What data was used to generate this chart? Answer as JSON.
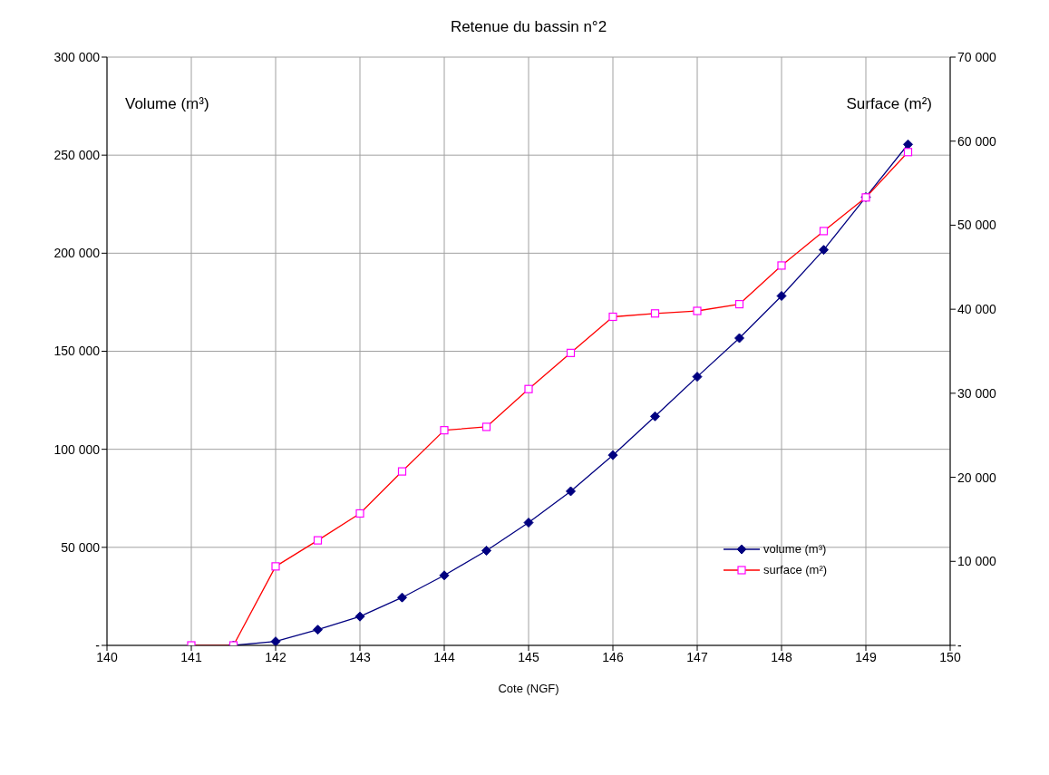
{
  "chart_data": {
    "type": "line",
    "title": "Retenue du bassin n°2",
    "xlabel": "Cote (NGF)",
    "ylabel": "Volume (m³)",
    "y2label": "Surface (m²)",
    "x": [
      141,
      141.5,
      142,
      142.5,
      143,
      143.5,
      144,
      144.5,
      145,
      145.5,
      146,
      146.5,
      147,
      147.5,
      148,
      148.5,
      149,
      149.5
    ],
    "series": [
      {
        "name": "volume (m³)",
        "color": "#000080",
        "marker": "diamond",
        "values": [
          null,
          0,
          2000,
          8000,
          14700,
          24400,
          35700,
          48300,
          62600,
          78600,
          97000,
          116800,
          137000,
          156700,
          178200,
          201700,
          228600,
          255500
        ]
      },
      {
        "name": "surface (m²)",
        "color": "#ff0000",
        "marker": "square",
        "axis": "y2",
        "values": [
          0,
          0,
          9400,
          12500,
          15700,
          20700,
          25600,
          26000,
          30500,
          34800,
          39100,
          39500,
          39800,
          40600,
          45200,
          49300,
          53300,
          58700
        ]
      }
    ],
    "xlim": [
      140,
      150
    ],
    "xticks": [
      140,
      141,
      142,
      143,
      144,
      145,
      146,
      147,
      148,
      149,
      150
    ],
    "ylim": [
      0,
      300000
    ],
    "yticks": [
      {
        "value": 0,
        "label": "-"
      },
      50000,
      100000,
      150000,
      200000,
      250000,
      300000
    ],
    "y2lim": [
      0,
      70000
    ],
    "y2ticks": [
      {
        "value": 0,
        "label": "-"
      },
      10000,
      20000,
      30000,
      40000,
      50000,
      60000,
      70000
    ],
    "grid": true,
    "legend": "bottom right"
  }
}
